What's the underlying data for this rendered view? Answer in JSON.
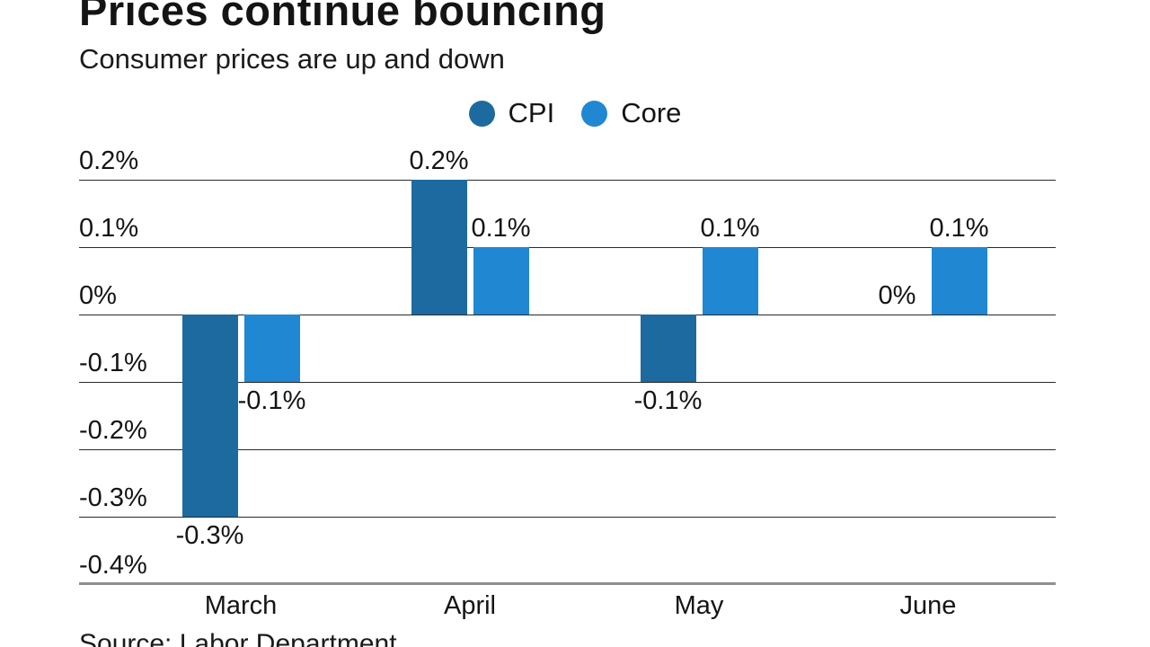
{
  "header": {
    "title": "Prices continue bouncing",
    "subtitle": "Consumer prices are up and down"
  },
  "legend": [
    {
      "label": "CPI",
      "color": "#1d6aa0"
    },
    {
      "label": "Core",
      "color": "#2087d3"
    }
  ],
  "chart_data": {
    "type": "bar",
    "categories": [
      "March",
      "April",
      "May",
      "June"
    ],
    "series": [
      {
        "name": "CPI",
        "color": "#1d6aa0",
        "values": [
          -0.3,
          0.2,
          -0.1,
          0
        ],
        "labels": [
          "-0.3%",
          "0.2%",
          "-0.1%",
          "0%"
        ]
      },
      {
        "name": "Core",
        "color": "#2087d3",
        "values": [
          -0.1,
          0.1,
          0.1,
          0.1
        ],
        "labels": [
          "-0.1%",
          "0.1%",
          "0.1%",
          "0.1%"
        ]
      }
    ],
    "y_ticks": [
      0.2,
      0.1,
      0,
      -0.1,
      -0.2,
      -0.3,
      -0.4
    ],
    "y_tick_labels": [
      "0.2%",
      "0.1%",
      "0%",
      "-0.1%",
      "-0.2%",
      "-0.3%",
      "-0.4%"
    ],
    "ylim": [
      -0.4,
      0.2
    ],
    "grid": true,
    "legend_position": "top-center",
    "title": "Prices continue bouncing",
    "subtitle": "Consumer prices are up and down",
    "xlabel": "",
    "ylabel": ""
  },
  "footer": {
    "source": "Source: Labor Department"
  }
}
